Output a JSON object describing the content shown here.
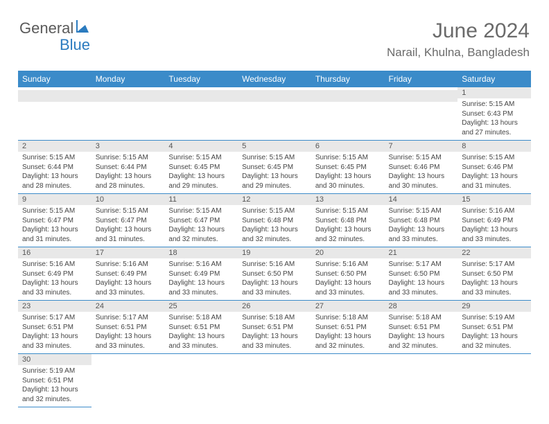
{
  "logo": {
    "general": "General",
    "blue": "Blue"
  },
  "header": {
    "title": "June 2024",
    "location": "Narail, Khulna, Bangladesh"
  },
  "colors": {
    "header_bg": "#3b8bc9",
    "header_fg": "#ffffff",
    "num_bar_bg": "#e8e8e8",
    "border": "#3b8bc9",
    "text": "#444444",
    "title": "#6a6a6a"
  },
  "dow": [
    "Sunday",
    "Monday",
    "Tuesday",
    "Wednesday",
    "Thursday",
    "Friday",
    "Saturday"
  ],
  "grid": [
    [
      {
        "empty": true
      },
      {
        "empty": true
      },
      {
        "empty": true
      },
      {
        "empty": true
      },
      {
        "empty": true
      },
      {
        "empty": true
      },
      {
        "num": "1",
        "sunrise": "5:15 AM",
        "sunset": "6:43 PM",
        "daylight": "13 hours and 27 minutes."
      }
    ],
    [
      {
        "num": "2",
        "sunrise": "5:15 AM",
        "sunset": "6:44 PM",
        "daylight": "13 hours and 28 minutes."
      },
      {
        "num": "3",
        "sunrise": "5:15 AM",
        "sunset": "6:44 PM",
        "daylight": "13 hours and 28 minutes."
      },
      {
        "num": "4",
        "sunrise": "5:15 AM",
        "sunset": "6:45 PM",
        "daylight": "13 hours and 29 minutes."
      },
      {
        "num": "5",
        "sunrise": "5:15 AM",
        "sunset": "6:45 PM",
        "daylight": "13 hours and 29 minutes."
      },
      {
        "num": "6",
        "sunrise": "5:15 AM",
        "sunset": "6:45 PM",
        "daylight": "13 hours and 30 minutes."
      },
      {
        "num": "7",
        "sunrise": "5:15 AM",
        "sunset": "6:46 PM",
        "daylight": "13 hours and 30 minutes."
      },
      {
        "num": "8",
        "sunrise": "5:15 AM",
        "sunset": "6:46 PM",
        "daylight": "13 hours and 31 minutes."
      }
    ],
    [
      {
        "num": "9",
        "sunrise": "5:15 AM",
        "sunset": "6:47 PM",
        "daylight": "13 hours and 31 minutes."
      },
      {
        "num": "10",
        "sunrise": "5:15 AM",
        "sunset": "6:47 PM",
        "daylight": "13 hours and 31 minutes."
      },
      {
        "num": "11",
        "sunrise": "5:15 AM",
        "sunset": "6:47 PM",
        "daylight": "13 hours and 32 minutes."
      },
      {
        "num": "12",
        "sunrise": "5:15 AM",
        "sunset": "6:48 PM",
        "daylight": "13 hours and 32 minutes."
      },
      {
        "num": "13",
        "sunrise": "5:15 AM",
        "sunset": "6:48 PM",
        "daylight": "13 hours and 32 minutes."
      },
      {
        "num": "14",
        "sunrise": "5:15 AM",
        "sunset": "6:48 PM",
        "daylight": "13 hours and 33 minutes."
      },
      {
        "num": "15",
        "sunrise": "5:16 AM",
        "sunset": "6:49 PM",
        "daylight": "13 hours and 33 minutes."
      }
    ],
    [
      {
        "num": "16",
        "sunrise": "5:16 AM",
        "sunset": "6:49 PM",
        "daylight": "13 hours and 33 minutes."
      },
      {
        "num": "17",
        "sunrise": "5:16 AM",
        "sunset": "6:49 PM",
        "daylight": "13 hours and 33 minutes."
      },
      {
        "num": "18",
        "sunrise": "5:16 AM",
        "sunset": "6:49 PM",
        "daylight": "13 hours and 33 minutes."
      },
      {
        "num": "19",
        "sunrise": "5:16 AM",
        "sunset": "6:50 PM",
        "daylight": "13 hours and 33 minutes."
      },
      {
        "num": "20",
        "sunrise": "5:16 AM",
        "sunset": "6:50 PM",
        "daylight": "13 hours and 33 minutes."
      },
      {
        "num": "21",
        "sunrise": "5:17 AM",
        "sunset": "6:50 PM",
        "daylight": "13 hours and 33 minutes."
      },
      {
        "num": "22",
        "sunrise": "5:17 AM",
        "sunset": "6:50 PM",
        "daylight": "13 hours and 33 minutes."
      }
    ],
    [
      {
        "num": "23",
        "sunrise": "5:17 AM",
        "sunset": "6:51 PM",
        "daylight": "13 hours and 33 minutes."
      },
      {
        "num": "24",
        "sunrise": "5:17 AM",
        "sunset": "6:51 PM",
        "daylight": "13 hours and 33 minutes."
      },
      {
        "num": "25",
        "sunrise": "5:18 AM",
        "sunset": "6:51 PM",
        "daylight": "13 hours and 33 minutes."
      },
      {
        "num": "26",
        "sunrise": "5:18 AM",
        "sunset": "6:51 PM",
        "daylight": "13 hours and 33 minutes."
      },
      {
        "num": "27",
        "sunrise": "5:18 AM",
        "sunset": "6:51 PM",
        "daylight": "13 hours and 32 minutes."
      },
      {
        "num": "28",
        "sunrise": "5:18 AM",
        "sunset": "6:51 PM",
        "daylight": "13 hours and 32 minutes."
      },
      {
        "num": "29",
        "sunrise": "5:19 AM",
        "sunset": "6:51 PM",
        "daylight": "13 hours and 32 minutes."
      }
    ],
    [
      {
        "num": "30",
        "sunrise": "5:19 AM",
        "sunset": "6:51 PM",
        "daylight": "13 hours and 32 minutes."
      },
      {
        "blank": true
      },
      {
        "blank": true
      },
      {
        "blank": true
      },
      {
        "blank": true
      },
      {
        "blank": true
      },
      {
        "blank": true
      }
    ]
  ],
  "labels": {
    "sunrise_prefix": "Sunrise: ",
    "sunset_prefix": "Sunset: ",
    "daylight_prefix": "Daylight: "
  }
}
